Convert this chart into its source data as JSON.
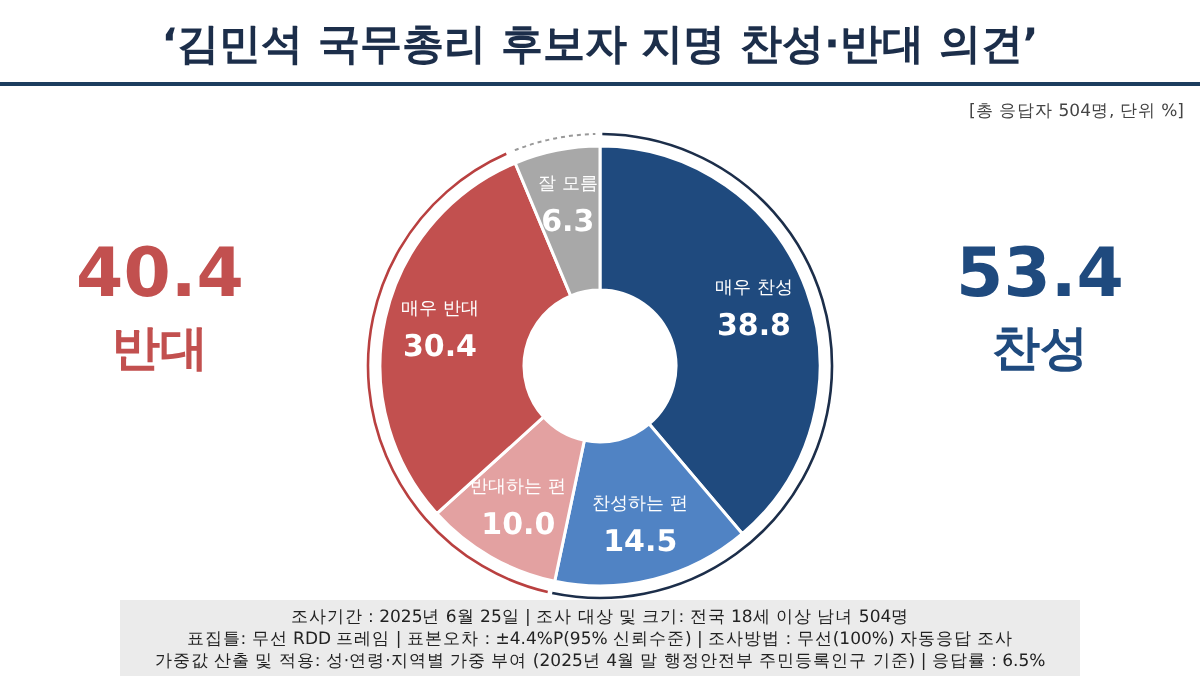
{
  "chart_data": {
    "type": "donut",
    "title": "‘김민석 국무총리 후보자 지명 찬성·반대 의견’",
    "subtitle": "[총 응답자 504명, 단위 %]",
    "categories": [
      "매우 찬성",
      "찬성하는 편",
      "반대하는 편",
      "매우 반대",
      "잘 모름"
    ],
    "values": [
      38.8,
      14.5,
      10.0,
      30.4,
      6.3
    ],
    "colors": [
      "#1f4a7e",
      "#5083c4",
      "#e3a1a1",
      "#c2504f",
      "#a8a8a8"
    ],
    "value_labels": [
      "38.8",
      "14.5",
      "10.0",
      "30.4",
      "6.3"
    ],
    "annotations": [
      "40.4",
      "반대",
      "53.4",
      "찬성",
      "조사기간 : 2025년 6월 25일 | 조사 대상 및 크기: 전국 18세 이상 남녀 504명",
      "표집틀: 무선 RDD 프레임 | 표본오차 : ±4.4%P(95% 신뢰수준) | 조사방법 : 무선(100%) 자동응답 조사",
      "가중값 산출 및 적용: 성·연령·지역별 가중 부여 (2025년 4월 말 행정안전부 주민등록인구 기준) | 응답률 : 6.5%"
    ]
  }
}
